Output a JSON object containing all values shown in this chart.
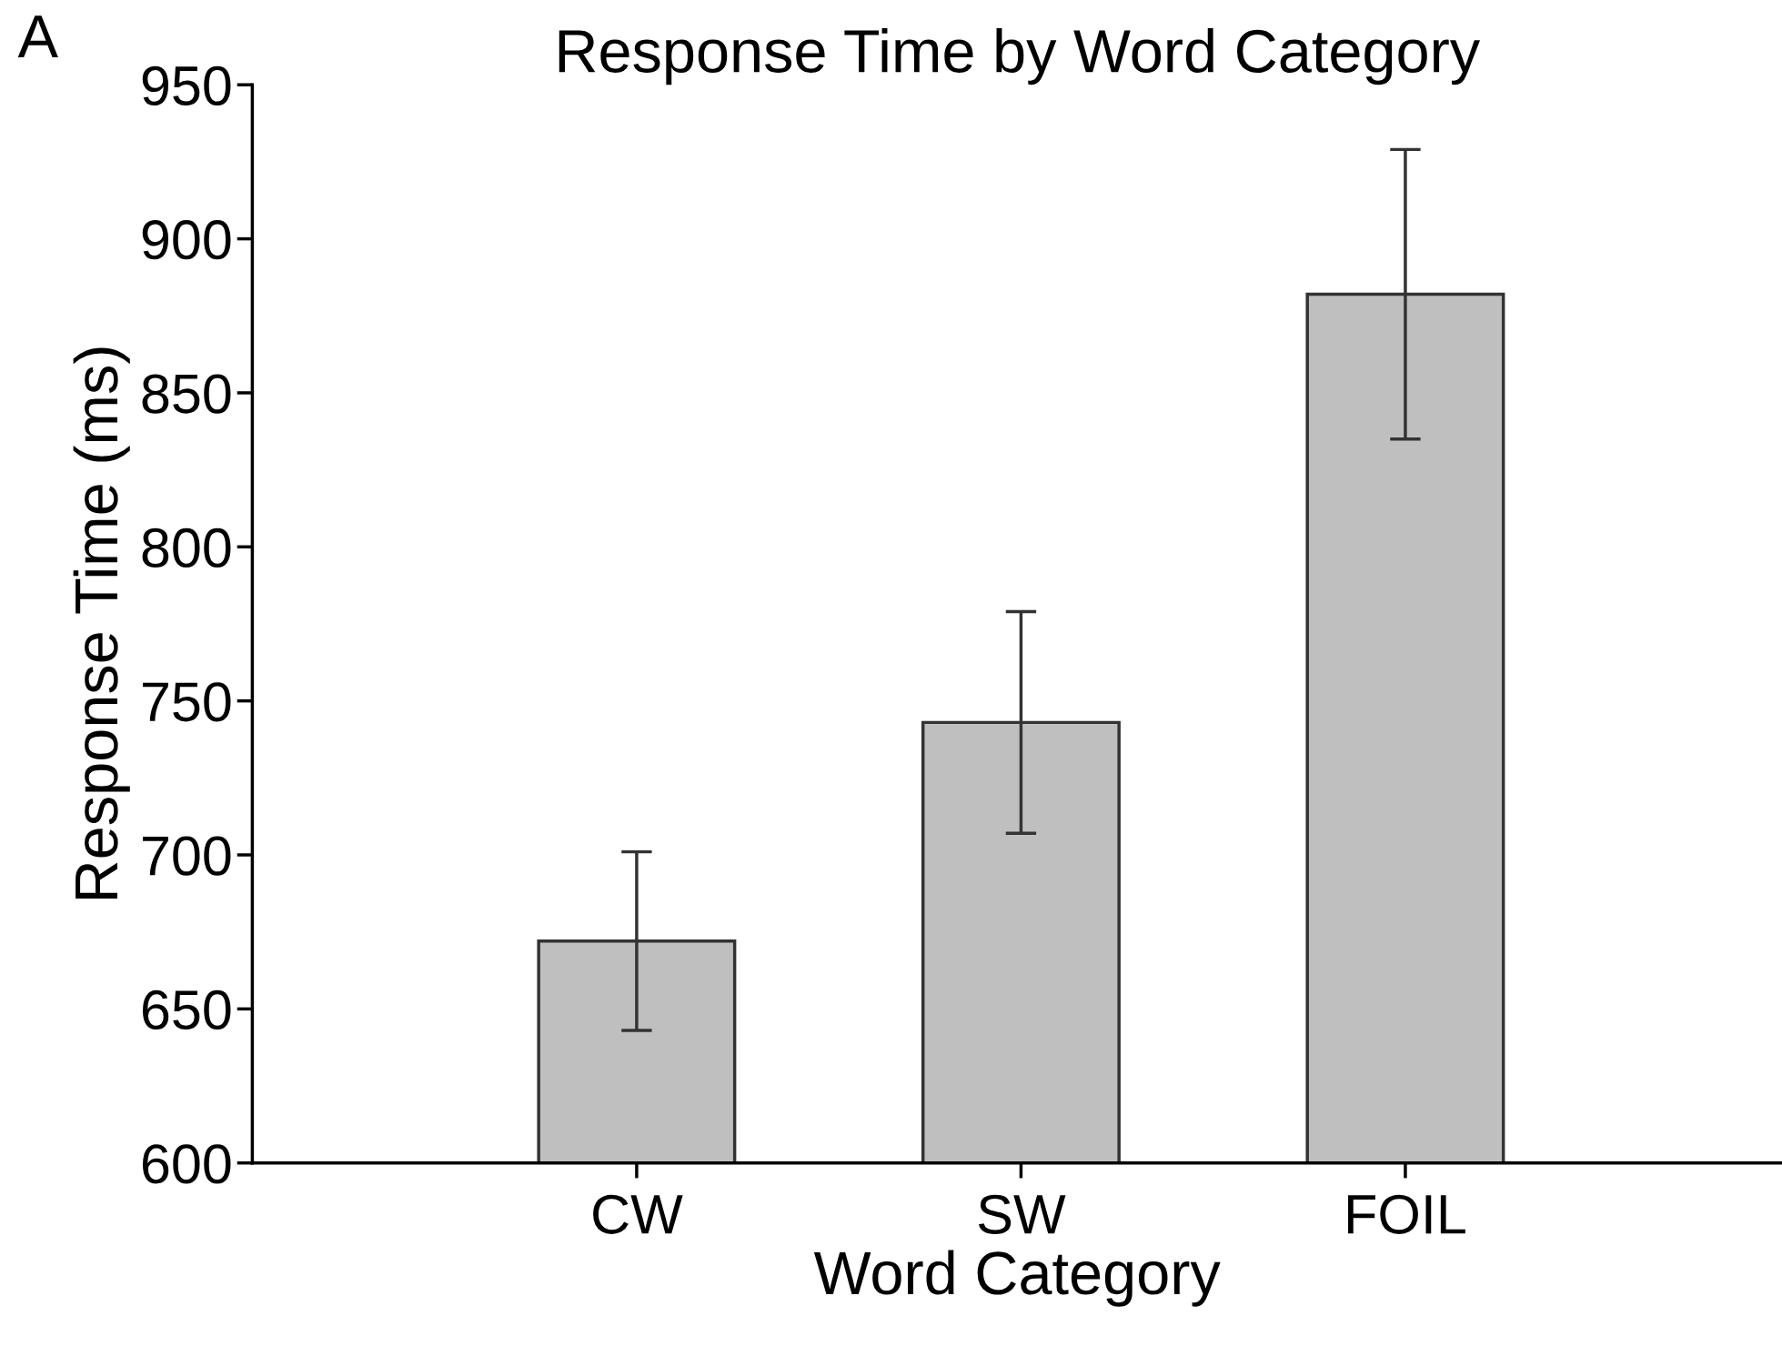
{
  "chart_data": {
    "type": "bar",
    "title": "Response Time by Word Category",
    "xlabel": "Word Category",
    "ylabel": "Response Time (ms)",
    "categories": [
      "CW",
      "SW",
      "FOIL"
    ],
    "values": [
      672,
      743,
      882
    ],
    "errors": [
      29,
      36,
      47
    ],
    "color": "#bfbfbf",
    "ylim": [
      600,
      950
    ],
    "yticks": [
      600,
      650,
      700,
      750,
      800,
      850,
      900,
      950
    ],
    "grid": false,
    "legend": false,
    "annotations": [
      "A"
    ]
  }
}
